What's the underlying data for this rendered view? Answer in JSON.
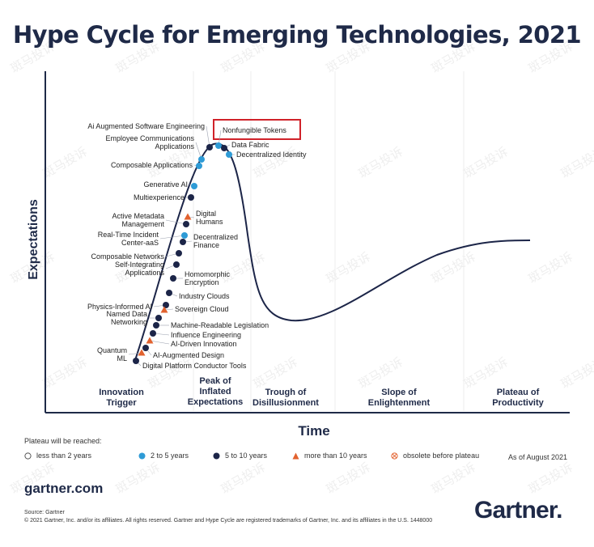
{
  "title": "Hype Cycle for Emerging Technologies, 2021",
  "axes": {
    "y_label": "Expectations",
    "x_label": "Time"
  },
  "phases": [
    {
      "lines": [
        "Innovation",
        "Trigger"
      ]
    },
    {
      "lines": [
        "Peak of",
        "Inflated",
        "Expectations"
      ]
    },
    {
      "lines": [
        "Trough of",
        "Disillusionment"
      ]
    },
    {
      "lines": [
        "Slope of",
        "Enlightenment"
      ]
    },
    {
      "lines": [
        "Plateau of",
        "Productivity"
      ]
    }
  ],
  "technologies": [
    {
      "name": "AI Augmented Software Engineering",
      "category": "5 to 10 years"
    },
    {
      "name": "Nonfungible Tokens",
      "category": "2 to 5 years",
      "highlighted": true
    },
    {
      "name": "Data Fabric",
      "category": "5 to 10 years"
    },
    {
      "name": "Decentralized Identity",
      "category": "2 to 5 years"
    },
    {
      "name": "Employee Communications Applications",
      "category": "2 to 5 years"
    },
    {
      "name": "Composable Applications",
      "category": "2 to 5 years"
    },
    {
      "name": "Generative AI",
      "category": "2 to 5 years"
    },
    {
      "name": "Multiexperience",
      "category": "5 to 10 years"
    },
    {
      "name": "Digital Humans",
      "category": "more than 10 years"
    },
    {
      "name": "Active Metadata Management",
      "category": "5 to 10 years"
    },
    {
      "name": "Real-Time Incident Center-aaS",
      "category": "2 to 5 years"
    },
    {
      "name": "Decentralized Finance",
      "category": "5 to 10 years"
    },
    {
      "name": "Composable Networks",
      "category": "5 to 10 years"
    },
    {
      "name": "Self-Integrating Applications",
      "category": "5 to 10 years"
    },
    {
      "name": "Homomorphic Encryption",
      "category": "5 to 10 years"
    },
    {
      "name": "Industry Clouds",
      "category": "5 to 10 years"
    },
    {
      "name": "Physics-Informed AI",
      "category": "5 to 10 years"
    },
    {
      "name": "Sovereign Cloud",
      "category": "more than 10 years"
    },
    {
      "name": "Named Data Networking",
      "category": "5 to 10 years"
    },
    {
      "name": "Machine-Readable Legislation",
      "category": "5 to 10 years"
    },
    {
      "name": "Influence Engineering",
      "category": "5 to 10 years"
    },
    {
      "name": "AI-Driven Innovation",
      "category": "more than 10 years"
    },
    {
      "name": "Quantum ML",
      "category": "more than 10 years"
    },
    {
      "name": "AI-Augmented Design",
      "category": "5 to 10 years"
    },
    {
      "name": "Digital Platform Conductor Tools",
      "category": "5 to 10 years"
    }
  ],
  "legend": {
    "title": "Plateau will be reached:",
    "items": [
      {
        "label": "less than 2 years",
        "symbol": "hollow-circle",
        "color": "#ffffff"
      },
      {
        "label": "2 to 5 years",
        "symbol": "circle",
        "color": "#2e9bd6"
      },
      {
        "label": "5 to 10 years",
        "symbol": "circle",
        "color": "#1c2548"
      },
      {
        "label": "more than 10 years",
        "symbol": "triangle",
        "color": "#e2622f"
      },
      {
        "label": "obsolete before plateau",
        "symbol": "crossed-circle",
        "color": "#e2622f"
      }
    ]
  },
  "as_of": "As of August 2021",
  "site": "gartner.com",
  "source": "Source: Gartner",
  "copyright": "© 2021 Gartner, Inc. and/or its affiliates. All rights reserved. Gartner and Hype Cycle are registered trademarks of Gartner, Inc. and its affiliates in the U.S. 1448000",
  "brand": "Gartner",
  "brand_dot": ".",
  "watermark": "斑马投诉",
  "colors": {
    "navy": "#1c2548",
    "blue": "#2e9bd6",
    "orange": "#e2622f",
    "highlight": "#d0222a"
  }
}
